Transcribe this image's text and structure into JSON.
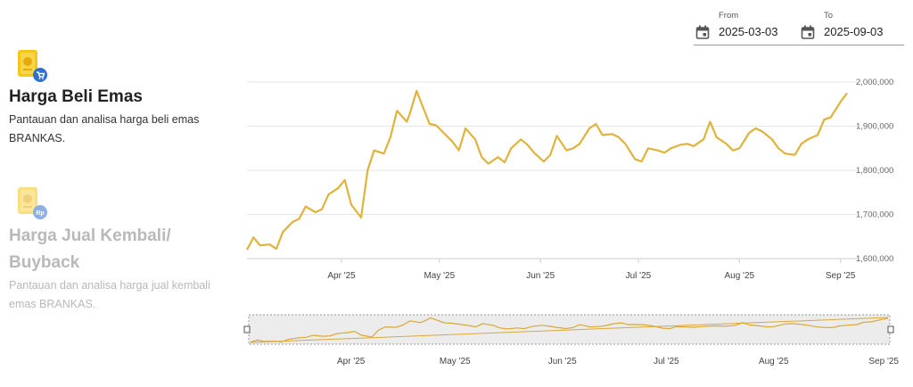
{
  "sidebar": {
    "items": [
      {
        "title": "Harga Beli Emas",
        "description": "Pantauan dan analisa harga beli emas BRANKAS.",
        "active": true,
        "icon": "gold-cart-icon"
      },
      {
        "title_line1": "Harga Jual Kembali/",
        "title_line2": "Buyback",
        "description": "Pantauan dan analisa harga jual kembali emas BRANKAS.",
        "active": false,
        "icon": "gold-rupiah-icon"
      }
    ]
  },
  "date_range": {
    "from_label": "From",
    "from_value": "2025-03-03",
    "to_label": "To",
    "to_value": "2025-09-03",
    "icon": "calendar-icon"
  },
  "colors": {
    "line": "#e0b33c",
    "navigator_line": "#d9a93a",
    "grid": "#e6e6e6",
    "active_title": "#222222",
    "inactive_title": "#b9b9b9"
  },
  "chart_data": {
    "type": "line",
    "title": "",
    "xlabel": "",
    "ylabel": "",
    "ylim": [
      1600000,
      2000000
    ],
    "y_ticks": [
      "2,000,000",
      "1,900,000",
      "1,800,000",
      "1,700,000",
      "1,600,000"
    ],
    "x_ticks": [
      "Apr '25",
      "May '25",
      "Jun '25",
      "Jul '25",
      "Aug '25",
      "Sep '25"
    ],
    "grid": true,
    "x_dates": [
      "2025-03-03",
      "2025-03-05",
      "2025-03-07",
      "2025-03-10",
      "2025-03-12",
      "2025-03-14",
      "2025-03-17",
      "2025-03-19",
      "2025-03-21",
      "2025-03-24",
      "2025-03-26",
      "2025-03-28",
      "2025-03-31",
      "2025-04-02",
      "2025-04-04",
      "2025-04-07",
      "2025-04-09",
      "2025-04-11",
      "2025-04-14",
      "2025-04-16",
      "2025-04-18",
      "2025-04-21",
      "2025-04-22",
      "2025-04-24",
      "2025-04-28",
      "2025-04-30",
      "2025-05-05",
      "2025-05-07",
      "2025-05-09",
      "2025-05-12",
      "2025-05-14",
      "2025-05-16",
      "2025-05-19",
      "2025-05-21",
      "2025-05-23",
      "2025-05-26",
      "2025-05-28",
      "2025-05-30",
      "2025-06-02",
      "2025-06-04",
      "2025-06-06",
      "2025-06-09",
      "2025-06-11",
      "2025-06-13",
      "2025-06-16",
      "2025-06-18",
      "2025-06-20",
      "2025-06-23",
      "2025-06-25",
      "2025-06-27",
      "2025-06-30",
      "2025-07-02",
      "2025-07-04",
      "2025-07-07",
      "2025-07-09",
      "2025-07-11",
      "2025-07-14",
      "2025-07-16",
      "2025-07-18",
      "2025-07-21",
      "2025-07-23",
      "2025-07-25",
      "2025-07-28",
      "2025-07-30",
      "2025-08-01",
      "2025-08-04",
      "2025-08-06",
      "2025-08-08",
      "2025-08-11",
      "2025-08-13",
      "2025-08-15",
      "2025-08-18",
      "2025-08-20",
      "2025-08-22",
      "2025-08-25",
      "2025-08-27",
      "2025-08-29",
      "2025-09-01",
      "2025-09-03"
    ],
    "series": [
      {
        "values": [
          1620000,
          1648000,
          1630000,
          1632000,
          1622000,
          1660000,
          1683000,
          1690000,
          1718000,
          1705000,
          1712000,
          1745000,
          1760000,
          1778000,
          1722000,
          1693000,
          1800000,
          1845000,
          1838000,
          1875000,
          1935000,
          1910000,
          1930000,
          1980000,
          1905000,
          1902000,
          1865000,
          1845000,
          1895000,
          1870000,
          1830000,
          1815000,
          1830000,
          1818000,
          1850000,
          1870000,
          1858000,
          1840000,
          1820000,
          1835000,
          1878000,
          1845000,
          1850000,
          1860000,
          1895000,
          1905000,
          1880000,
          1882000,
          1875000,
          1860000,
          1825000,
          1820000,
          1850000,
          1845000,
          1840000,
          1850000,
          1858000,
          1860000,
          1855000,
          1870000,
          1910000,
          1875000,
          1860000,
          1845000,
          1850000,
          1885000,
          1895000,
          1888000,
          1870000,
          1850000,
          1838000,
          1835000,
          1860000,
          1870000,
          1880000,
          1915000,
          1920000,
          1955000,
          1975000
        ]
      }
    ]
  },
  "navigator": {
    "x_ticks": [
      "Apr '25",
      "May '25",
      "Jun '25",
      "Jul '25",
      "Aug '25",
      "Sep '25"
    ]
  }
}
